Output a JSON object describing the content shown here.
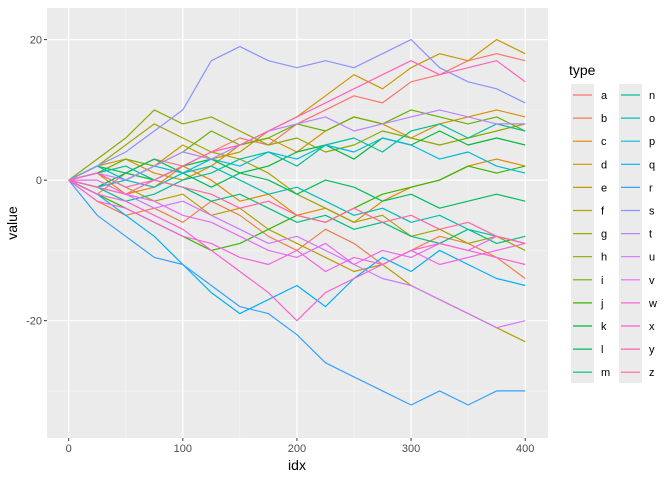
{
  "chart_data": {
    "type": "line",
    "xlabel": "idx",
    "ylabel": "value",
    "xlim": [
      -19,
      420
    ],
    "ylim": [
      -36.7,
      24.5
    ],
    "x_ticks": [
      0,
      100,
      200,
      300,
      400
    ],
    "y_ticks": [
      -20,
      0,
      20
    ],
    "grid": true,
    "legend": {
      "title": "type",
      "placement": "right"
    },
    "x": [
      0,
      25,
      50,
      75,
      100,
      125,
      150,
      175,
      200,
      225,
      250,
      275,
      300,
      325,
      350,
      375,
      400
    ],
    "series": [
      {
        "name": "a",
        "color": "#F8766D",
        "values": [
          0,
          -2,
          1,
          3,
          2,
          4,
          6,
          5,
          8,
          10,
          12,
          11,
          14,
          15,
          17,
          18,
          17
        ]
      },
      {
        "name": "b",
        "color": "#F07E4D",
        "values": [
          0,
          -3,
          -5,
          -4,
          -6,
          -3,
          -5,
          -8,
          -10,
          -7,
          -9,
          -12,
          -10,
          -8,
          -9,
          -11,
          -14
        ]
      },
      {
        "name": "c",
        "color": "#E58700",
        "values": [
          0,
          1,
          -2,
          -1,
          2,
          0,
          -3,
          -2,
          -5,
          -4,
          -6,
          -3,
          -1,
          0,
          2,
          3,
          2
        ]
      },
      {
        "name": "d",
        "color": "#D89000",
        "values": [
          0,
          2,
          3,
          1,
          0,
          2,
          5,
          6,
          4,
          7,
          9,
          8,
          6,
          8,
          9,
          10,
          9
        ]
      },
      {
        "name": "e",
        "color": "#C99800",
        "values": [
          0,
          -1,
          0,
          2,
          5,
          3,
          4,
          7,
          9,
          12,
          15,
          13,
          16,
          18,
          17,
          20,
          18
        ]
      },
      {
        "name": "f",
        "color": "#B79F00",
        "values": [
          0,
          1,
          -1,
          -3,
          -2,
          -5,
          -4,
          -7,
          -9,
          -11,
          -13,
          -12,
          -15,
          -17,
          -19,
          -21,
          -23
        ]
      },
      {
        "name": "g",
        "color": "#A3A500",
        "values": [
          0,
          2,
          5,
          8,
          6,
          4,
          3,
          1,
          -2,
          -4,
          -6,
          -5,
          -8,
          -7,
          -9,
          -8,
          -10
        ]
      },
      {
        "name": "h",
        "color": "#8CAB00",
        "values": [
          0,
          3,
          6,
          10,
          8,
          9,
          7,
          5,
          6,
          4,
          5,
          7,
          6,
          5,
          6,
          7,
          8
        ]
      },
      {
        "name": "i",
        "color": "#6BB100",
        "values": [
          0,
          1,
          3,
          2,
          4,
          7,
          5,
          6,
          8,
          7,
          9,
          8,
          10,
          9,
          8,
          9,
          7
        ]
      },
      {
        "name": "j",
        "color": "#39B600",
        "values": [
          0,
          -2,
          -4,
          -6,
          -8,
          -10,
          -9,
          -7,
          -5,
          -6,
          -4,
          -2,
          -1,
          0,
          2,
          1,
          2
        ]
      },
      {
        "name": "k",
        "color": "#00BA38",
        "values": [
          0,
          -1,
          1,
          0,
          2,
          3,
          1,
          2,
          4,
          5,
          3,
          6,
          5,
          7,
          5,
          6,
          5
        ]
      },
      {
        "name": "l",
        "color": "#00BD5C",
        "values": [
          0,
          2,
          1,
          3,
          1,
          -1,
          1,
          0,
          -2,
          0,
          -1,
          -3,
          -2,
          -4,
          -3,
          -2,
          -3
        ]
      },
      {
        "name": "m",
        "color": "#00BF7D",
        "values": [
          0,
          1,
          2,
          0,
          -1,
          -3,
          -2,
          -4,
          -6,
          -5,
          -7,
          -6,
          -8,
          -9,
          -7,
          -9,
          -8
        ]
      },
      {
        "name": "n",
        "color": "#00C19A",
        "values": [
          0,
          -1,
          -3,
          -2,
          0,
          1,
          3,
          4,
          2,
          5,
          6,
          4,
          7,
          8,
          6,
          8,
          7
        ]
      },
      {
        "name": "o",
        "color": "#00C0B5",
        "values": [
          0,
          2,
          0,
          -1,
          1,
          2,
          0,
          -2,
          -1,
          -3,
          -5,
          -4,
          -6,
          -5,
          -7,
          -8,
          -9
        ]
      },
      {
        "name": "p",
        "color": "#00BCD8",
        "values": [
          0,
          -1,
          0,
          2,
          1,
          3,
          2,
          4,
          3,
          5,
          4,
          6,
          5,
          3,
          4,
          2,
          1
        ]
      },
      {
        "name": "q",
        "color": "#00B0F6",
        "values": [
          0,
          -2,
          -5,
          -8,
          -12,
          -16,
          -19,
          -17,
          -15,
          -18,
          -14,
          -11,
          -13,
          -10,
          -12,
          -14,
          -15
        ]
      },
      {
        "name": "r",
        "color": "#35A2FF",
        "values": [
          0,
          -5,
          -8,
          -11,
          -12,
          -15,
          -18,
          -19,
          -22,
          -26,
          -28,
          -30,
          -32,
          -30,
          -32,
          -30,
          -30
        ]
      },
      {
        "name": "s",
        "color": "#8B93FF",
        "values": [
          0,
          2,
          4,
          7,
          10,
          17,
          19,
          17,
          16,
          17,
          16,
          18,
          20,
          16,
          14,
          13,
          11
        ]
      },
      {
        "name": "t",
        "color": "#B983FF",
        "values": [
          0,
          1,
          0,
          2,
          4,
          3,
          5,
          7,
          8,
          9,
          7,
          8,
          9,
          10,
          9,
          8,
          8
        ]
      },
      {
        "name": "u",
        "color": "#D376FF",
        "values": [
          0,
          -1,
          -2,
          -4,
          -3,
          -5,
          -7,
          -9,
          -8,
          -10,
          -12,
          -14,
          -15,
          -17,
          -19,
          -21,
          -20
        ]
      },
      {
        "name": "v",
        "color": "#E76BF3",
        "values": [
          0,
          0,
          -2,
          -3,
          -5,
          -6,
          -8,
          -10,
          -11,
          -9,
          -12,
          -10,
          -11,
          -9,
          -10,
          -8,
          -9
        ]
      },
      {
        "name": "w",
        "color": "#F564E3",
        "values": [
          0,
          -3,
          -4,
          -6,
          -8,
          -9,
          -11,
          -12,
          -10,
          -13,
          -11,
          -12,
          -10,
          -12,
          -11,
          -10,
          -9
        ]
      },
      {
        "name": "x",
        "color": "#FD61D1",
        "values": [
          0,
          -2,
          -3,
          -5,
          -7,
          -10,
          -13,
          -16,
          -20,
          -16,
          -14,
          -12,
          -10,
          -9,
          -10,
          -11,
          -12
        ]
      },
      {
        "name": "y",
        "color": "#FF62BC",
        "values": [
          0,
          1,
          -1,
          0,
          2,
          4,
          5,
          7,
          9,
          11,
          13,
          15,
          17,
          15,
          16,
          17,
          14
        ]
      },
      {
        "name": "z",
        "color": "#FF67A4",
        "values": [
          0,
          -1,
          -2,
          0,
          -1,
          -2,
          -4,
          -3,
          -5,
          -6,
          -4,
          -6,
          -5,
          -7,
          -6,
          -8,
          -9
        ]
      }
    ]
  }
}
